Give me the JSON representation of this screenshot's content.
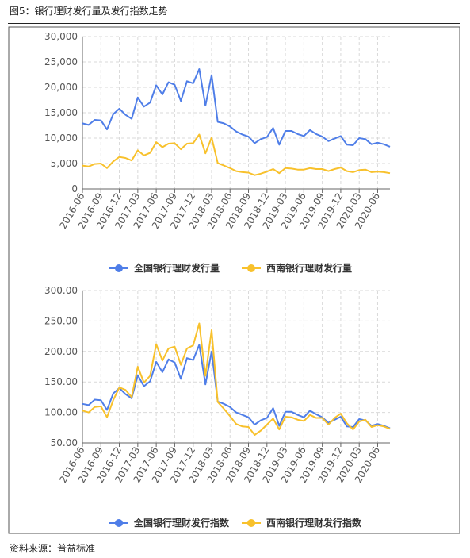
{
  "figure_title": "图5：银行理财发行量及发行指数走势",
  "source": "资料来源：普益标准",
  "colors": {
    "national": "#4f7ee8",
    "southwest": "#f8c12c",
    "grid": "#d9d9d9"
  },
  "chart_data": [
    {
      "type": "line",
      "ylim": [
        0,
        30000
      ],
      "y_ticks": [
        "30,000",
        "25,000",
        "20,000",
        "15,000",
        "10,000",
        "5,000",
        "0"
      ],
      "x_ticks": [
        "2016-06",
        "2016-09",
        "2016-12",
        "2017-03",
        "2017-06",
        "2017-09",
        "2017-12",
        "2018-03",
        "2018-06",
        "2018-09",
        "2018-12",
        "2019-03",
        "2019-06",
        "2019-09",
        "2019-12",
        "2020-03",
        "2020-06"
      ],
      "x": [
        "2016-06",
        "2016-07",
        "2016-08",
        "2016-09",
        "2016-10",
        "2016-11",
        "2016-12",
        "2017-01",
        "2017-02",
        "2017-03",
        "2017-04",
        "2017-05",
        "2017-06",
        "2017-07",
        "2017-08",
        "2017-09",
        "2017-10",
        "2017-11",
        "2017-12",
        "2018-01",
        "2018-02",
        "2018-03",
        "2018-04",
        "2018-05",
        "2018-06",
        "2018-07",
        "2018-08",
        "2018-09",
        "2018-10",
        "2018-11",
        "2018-12",
        "2019-01",
        "2019-02",
        "2019-03",
        "2019-04",
        "2019-05",
        "2019-06",
        "2019-07",
        "2019-08",
        "2019-09",
        "2019-10",
        "2019-11",
        "2019-12",
        "2020-01",
        "2020-02",
        "2020-03",
        "2020-04",
        "2020-05",
        "2020-06",
        "2020-07",
        "2020-08"
      ],
      "series": [
        {
          "name": "全国银行理财发行量",
          "values": [
            12900,
            12600,
            13600,
            13500,
            11700,
            14700,
            15800,
            14600,
            13800,
            18000,
            16200,
            17000,
            20400,
            18600,
            21000,
            20500,
            17300,
            21200,
            20800,
            23600,
            16400,
            22400,
            13200,
            12900,
            12300,
            11300,
            10700,
            10300,
            9000,
            9800,
            10200,
            12000,
            8700,
            11400,
            11400,
            10800,
            10400,
            11600,
            10800,
            10300,
            9400,
            9900,
            10400,
            8700,
            8600,
            10000,
            9800,
            8800,
            9100,
            8800,
            8300
          ]
        },
        {
          "name": "西南银行理财发行量",
          "values": [
            4600,
            4400,
            4900,
            5000,
            4100,
            5400,
            6300,
            6100,
            5600,
            7600,
            6600,
            7100,
            9200,
            8200,
            8900,
            9000,
            7800,
            8900,
            9000,
            10700,
            7000,
            10100,
            5100,
            4600,
            4100,
            3500,
            3300,
            3200,
            2700,
            3000,
            3400,
            3900,
            3100,
            4100,
            4000,
            3800,
            3800,
            4100,
            3900,
            3900,
            3500,
            3900,
            4200,
            3500,
            3300,
            3700,
            3800,
            3300,
            3400,
            3300,
            3100
          ]
        }
      ]
    },
    {
      "type": "line",
      "ylim": [
        50,
        300
      ],
      "y_ticks": [
        "300.00",
        "250.00",
        "200.00",
        "150.00",
        "100.00",
        "50.00"
      ],
      "x_ticks": [
        "2016-06",
        "2016-09",
        "2016-12",
        "2017-03",
        "2017-06",
        "2017-09",
        "2017-12",
        "2018-03",
        "2018-06",
        "2018-09",
        "2018-12",
        "2019-03",
        "2019-06",
        "2019-09",
        "2019-12",
        "2020-03",
        "2020-06"
      ],
      "x": [
        "2016-06",
        "2016-07",
        "2016-08",
        "2016-09",
        "2016-10",
        "2016-11",
        "2016-12",
        "2017-01",
        "2017-02",
        "2017-03",
        "2017-04",
        "2017-05",
        "2017-06",
        "2017-07",
        "2017-08",
        "2017-09",
        "2017-10",
        "2017-11",
        "2017-12",
        "2018-01",
        "2018-02",
        "2018-03",
        "2018-04",
        "2018-05",
        "2018-06",
        "2018-07",
        "2018-08",
        "2018-09",
        "2018-10",
        "2018-11",
        "2018-12",
        "2019-01",
        "2019-02",
        "2019-03",
        "2019-04",
        "2019-05",
        "2019-06",
        "2019-07",
        "2019-08",
        "2019-09",
        "2019-10",
        "2019-11",
        "2019-12",
        "2020-01",
        "2020-02",
        "2020-03",
        "2020-04",
        "2020-05",
        "2020-06",
        "2020-07",
        "2020-08"
      ],
      "series": [
        {
          "name": "全国银行理财发行指数",
          "values": [
            114,
            112,
            121,
            120,
            104,
            131,
            140,
            130,
            123,
            161,
            143,
            151,
            183,
            166,
            187,
            182,
            155,
            189,
            186,
            211,
            146,
            200,
            118,
            114,
            109,
            100,
            96,
            92,
            80,
            87,
            91,
            107,
            78,
            101,
            101,
            96,
            92,
            103,
            97,
            92,
            83,
            88,
            93,
            77,
            76,
            89,
            87,
            78,
            81,
            78,
            74
          ]
        },
        {
          "name": "西南银行理财发行指数",
          "values": [
            103,
            100,
            109,
            110,
            92,
            120,
            141,
            137,
            125,
            175,
            149,
            160,
            212,
            185,
            205,
            208,
            178,
            205,
            210,
            246,
            160,
            235,
            117,
            106,
            94,
            81,
            77,
            76,
            63,
            70,
            80,
            90,
            72,
            93,
            92,
            88,
            86,
            96,
            91,
            91,
            80,
            91,
            98,
            82,
            72,
            85,
            88,
            76,
            79,
            77,
            73
          ]
        }
      ]
    }
  ]
}
